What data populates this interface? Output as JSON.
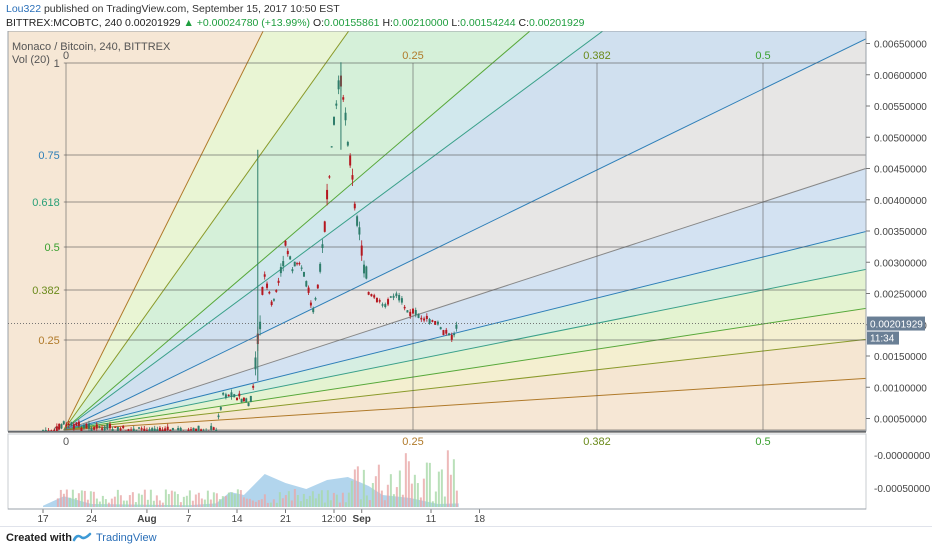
{
  "header": {
    "user": "Lou322",
    "published": " published on TradingView.com, September 15, 2017 10:50 EST",
    "symbol": "BITTREX:MCOBTC, 240",
    "last": "0.00201929",
    "change": "+0.00024780 (+13.99%)",
    "o_label": "O:",
    "o": "0.00155861",
    "h_label": "H:",
    "h": "0.00210000",
    "l_label": "L:",
    "l": "0.00154244",
    "c_label": "C:",
    "c": "0.00201929"
  },
  "legend": {
    "title": "Monaco / Bitcoin, 240, BITTREX",
    "vol": "Vol (20)"
  },
  "footer": {
    "created": "Created with",
    "brand": "TradingView"
  },
  "colors": {
    "up": "#2e7d6b",
    "down": "#b5171f",
    "price_line": "#666666",
    "price_badge": "#6a7f95",
    "volume": "#9fcbe8"
  },
  "chart_data": [
    {
      "type": "candlestick",
      "title": "Monaco / Bitcoin, 240, BITTREX",
      "x_tick_labels": [
        "17",
        "24",
        "Aug",
        "7",
        "14",
        "21",
        "12:00",
        "Sep",
        "11",
        "18"
      ],
      "y_tick_labels": [
        "0.00650000",
        "0.00600000",
        "0.00550000",
        "0.00500000",
        "0.00450000",
        "0.00400000",
        "0.00350000",
        "0.00300000",
        "0.00250000",
        "0.00200000",
        "0.00150000",
        "0.00100000",
        "0.00050000"
      ],
      "ylim": [
        0.0003,
        0.0067
      ],
      "last_price": "0.00201929",
      "countdown": "11:34",
      "series": [
        {
          "name": "MCOBTC close (approx.)",
          "x": [
            "Jul 17",
            "Jul 19",
            "Jul 20",
            "Jul 24",
            "Aug 1",
            "Aug 7",
            "Aug 11",
            "Aug 12",
            "Aug 14",
            "Aug 15",
            "Aug 16",
            "Aug 17",
            "Aug 18",
            "Aug 19",
            "Aug 20",
            "Aug 21",
            "Aug 22",
            "Aug 23",
            "Aug 24",
            "Aug 25",
            "Aug 26",
            "Aug 27",
            "Aug 28",
            "Aug 29",
            "Aug 30",
            "Aug 31",
            "Sep 1",
            "Sep 2",
            "Sep 4",
            "Sep 6",
            "Sep 8",
            "Sep 10",
            "Sep 12",
            "Sep 14",
            "Sep 15"
          ],
          "values": [
            0.0003,
            0.0003,
            0.0004,
            0.00035,
            0.0003,
            0.0003,
            0.00032,
            0.0009,
            0.00085,
            0.0008,
            0.0007,
            0.0017,
            0.0028,
            0.0023,
            0.0026,
            0.0033,
            0.0029,
            0.003,
            0.0027,
            0.0022,
            0.0028,
            0.004,
            0.0052,
            0.006,
            0.005,
            0.004,
            0.0032,
            0.0025,
            0.0023,
            0.0025,
            0.0022,
            0.0021,
            0.002,
            0.0018,
            0.00202
          ]
        },
        {
          "name": "Vol (20)",
          "y_tick_labels": [
            "-0.00000000",
            "-0.00050000"
          ]
        }
      ],
      "fib_fan": {
        "origin": "Jul 20",
        "levels": [
          "0",
          "0.25",
          "0.382",
          "0.5",
          "0.618",
          "0.75",
          "1"
        ],
        "time_levels": [
          "0",
          "0.25",
          "0.382",
          "0.5"
        ]
      }
    }
  ]
}
